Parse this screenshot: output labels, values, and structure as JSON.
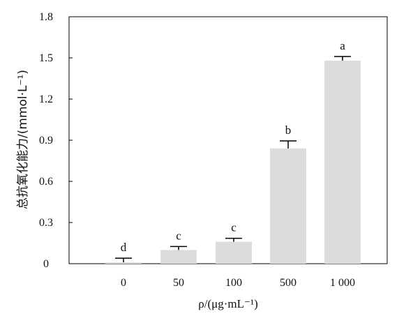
{
  "chart_data": {
    "type": "bar",
    "categories": [
      "0",
      "50",
      "100",
      "500",
      "1 000"
    ],
    "values": [
      0.01,
      0.1,
      0.16,
      0.84,
      1.48
    ],
    "errors": [
      0.03,
      0.025,
      0.025,
      0.055,
      0.03
    ],
    "significance_letters": [
      "d",
      "c",
      "c",
      "b",
      "a"
    ],
    "ylim": [
      0,
      1.8
    ],
    "yticks": [
      "0",
      "0.3",
      "0.6",
      "0.9",
      "1.2",
      "1.5",
      "1.8"
    ],
    "ylabel": "总抗氧化能力/(mmol·L⁻¹)",
    "xlabel": "ρ/(μg·mL⁻¹)",
    "bar_color": "#dcdcdc",
    "error_bar_color": "#000000",
    "grid": false
  }
}
